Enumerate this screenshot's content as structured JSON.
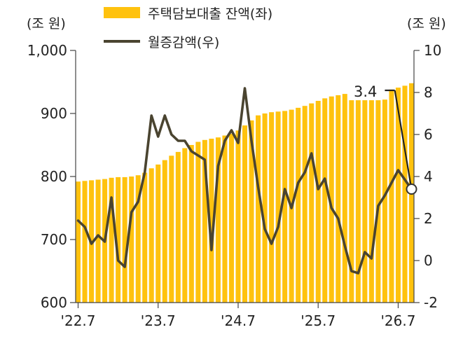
{
  "chart_data": {
    "type": "bar+line",
    "left_unit": "(조 원)",
    "right_unit": "(조 원)",
    "left_axis": {
      "ylim": [
        600,
        1000
      ],
      "ticks": [
        "1,000",
        "900",
        "800",
        "700",
        "600"
      ],
      "tick_values": [
        1000,
        900,
        800,
        700,
        600
      ]
    },
    "right_axis": {
      "ylim": [
        -2,
        10
      ],
      "ticks": [
        "10",
        "8",
        "6",
        "4",
        "2",
        "0",
        "-2"
      ],
      "tick_values": [
        10,
        8,
        6,
        4,
        2,
        0,
        -2
      ]
    },
    "x_tick_labels": [
      "'22.7",
      "'23.7",
      "'24.7",
      "'25.7",
      "'26.7"
    ],
    "x_tick_index": [
      0,
      12,
      24,
      36,
      48
    ],
    "series": [
      {
        "name": "주택담보대출 잔액(좌)",
        "kind": "bar",
        "color": "#FFC20E",
        "values": [
          792,
          793,
          794,
          795,
          796,
          798,
          799,
          799,
          800,
          802,
          806,
          813,
          819,
          826,
          833,
          839,
          845,
          850,
          855,
          858,
          860,
          862,
          865,
          868,
          873,
          881,
          889,
          897,
          900,
          902,
          903,
          904,
          906,
          909,
          912,
          916,
          920,
          924,
          927,
          929,
          931,
          921,
          921,
          921,
          921,
          921,
          922,
          938,
          941,
          944,
          948
        ]
      },
      {
        "name": "월증감액(우)",
        "kind": "line",
        "color": "#4A4430",
        "values": [
          1.9,
          1.6,
          0.8,
          1.2,
          0.9,
          3.0,
          0.0,
          -0.3,
          2.3,
          2.8,
          4.2,
          6.9,
          5.9,
          6.9,
          6.0,
          5.7,
          5.7,
          5.2,
          5.0,
          4.8,
          0.5,
          4.5,
          5.7,
          6.2,
          5.6,
          8.2,
          5.7,
          3.5,
          1.5,
          0.8,
          1.6,
          3.4,
          2.5,
          3.7,
          4.2,
          5.1,
          3.4,
          3.9,
          2.5,
          2.0,
          0.7,
          -0.5,
          -0.6,
          0.4,
          0.1,
          2.6,
          3.1,
          4.3,
          3.4
        ],
        "points_x": [
          0,
          1,
          2,
          3,
          4,
          5,
          6,
          7,
          8,
          9,
          10,
          11,
          12,
          13,
          14,
          15,
          16,
          17,
          18,
          19,
          20,
          21,
          22,
          23,
          24,
          25,
          26,
          27,
          28,
          29,
          30,
          31,
          32,
          33,
          34,
          35,
          36,
          37,
          38,
          39,
          40,
          41,
          42,
          43,
          44,
          45,
          46,
          48,
          50
        ]
      }
    ],
    "flat_segment": {
      "from_index": 46,
      "to_index": 47.5,
      "value": 8.1
    },
    "annotation": {
      "text": "3.4",
      "value": 3.4,
      "index": 50
    },
    "legend_position": "top-center"
  }
}
